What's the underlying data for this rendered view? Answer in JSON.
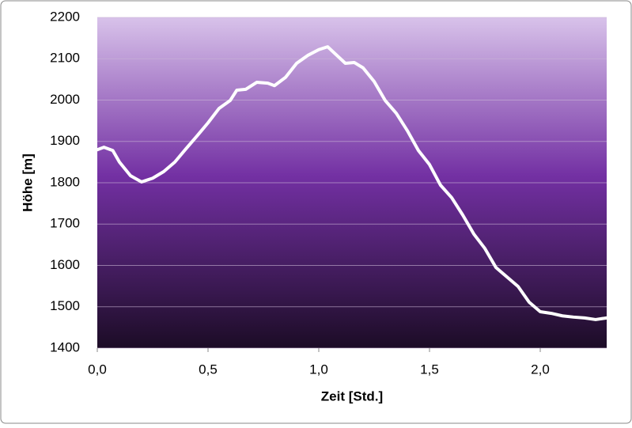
{
  "chart_data": {
    "type": "line",
    "x_label": "Zeit [Std.]",
    "y_label": "Höhe [m]",
    "x": [
      0,
      0.03,
      0.07,
      0.1,
      0.15,
      0.2,
      0.25,
      0.3,
      0.35,
      0.4,
      0.45,
      0.5,
      0.55,
      0.6,
      0.63,
      0.67,
      0.72,
      0.77,
      0.8,
      0.85,
      0.9,
      0.95,
      1.0,
      1.04,
      1.07,
      1.12,
      1.16,
      1.2,
      1.25,
      1.3,
      1.35,
      1.4,
      1.45,
      1.5,
      1.55,
      1.6,
      1.65,
      1.7,
      1.75,
      1.8,
      1.85,
      1.9,
      1.95,
      2.0,
      2.05,
      2.1,
      2.15,
      2.2,
      2.25,
      2.3
    ],
    "series": [
      {
        "color": "#ffffff",
        "values": [
          1880,
          1886,
          1878,
          1850,
          1817,
          1802,
          1811,
          1827,
          1850,
          1882,
          1913,
          1945,
          1980,
          1999,
          2024,
          2026,
          2043,
          2041,
          2035,
          2055,
          2089,
          2108,
          2122,
          2129,
          2114,
          2089,
          2091,
          2078,
          2045,
          1999,
          1968,
          1926,
          1878,
          1844,
          1794,
          1764,
          1722,
          1676,
          1641,
          1595,
          1572,
          1549,
          1511,
          1488,
          1484,
          1478,
          1475,
          1473,
          1469,
          1473
        ]
      }
    ],
    "xlim": [
      0,
      2.3
    ],
    "ylim": [
      1400,
      2200
    ],
    "xticks": [
      {
        "value": 0,
        "label": "0,0"
      },
      {
        "value": 0.5,
        "label": "0,5"
      },
      {
        "value": 1.0,
        "label": "1,0"
      },
      {
        "value": 1.5,
        "label": "1,5"
      },
      {
        "value": 2.0,
        "label": "2,0"
      }
    ],
    "yticks": [
      1400,
      1500,
      1600,
      1700,
      1800,
      1900,
      2000,
      2100,
      2200
    ],
    "grid": true
  }
}
